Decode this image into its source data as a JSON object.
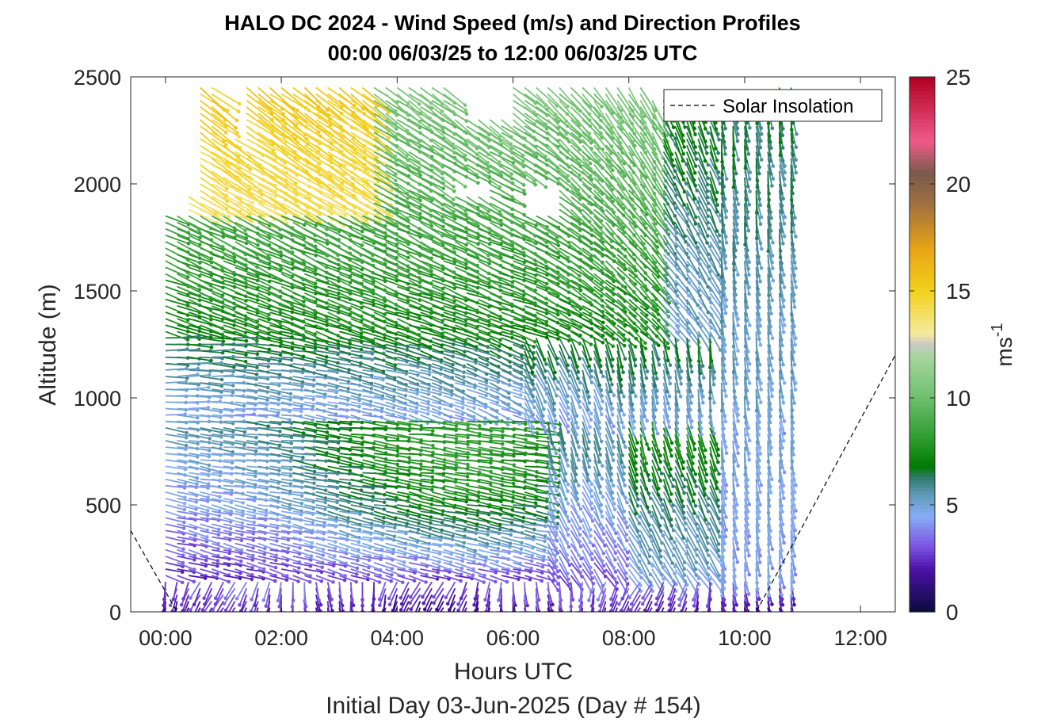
{
  "chart_data": {
    "type": "quiver",
    "title": "HALO DC 2024 - Wind Speed (m/s) and Direction Profiles",
    "subtitle": "00:00 06/03/25 to 12:00 06/03/25  UTC",
    "xlabel": "Hours UTC",
    "xlabel2": "Initial Day 03-Jun-2025 (Day # 154)",
    "ylabel": "Altitude (m)",
    "xlim_hours": [
      -0.6,
      12.6
    ],
    "ylim": [
      0,
      2500
    ],
    "xticks": [
      0,
      2,
      4,
      6,
      8,
      10,
      12
    ],
    "xtick_labels": [
      "00:00",
      "02:00",
      "04:00",
      "06:00",
      "08:00",
      "10:00",
      "12:00"
    ],
    "yticks": [
      0,
      500,
      1000,
      1500,
      2000,
      2500
    ],
    "ytick_labels": [
      "0",
      "500",
      "1000",
      "1500",
      "2000",
      "2500"
    ],
    "colorbar": {
      "label": "ms",
      "label_sup": "-1",
      "range": [
        0,
        25
      ],
      "ticks": [
        0,
        5,
        10,
        15,
        20,
        25
      ],
      "tick_labels": [
        "0",
        "5",
        "10",
        "15",
        "20",
        "25"
      ],
      "stops": [
        {
          "v": 0,
          "c": "#0b0b3a"
        },
        {
          "v": 2,
          "c": "#4b12a6"
        },
        {
          "v": 3,
          "c": "#7a4fe0"
        },
        {
          "v": 4.5,
          "c": "#85aef5"
        },
        {
          "v": 5.5,
          "c": "#5f9ab8"
        },
        {
          "v": 6.3,
          "c": "#2f7a6a"
        },
        {
          "v": 6.8,
          "c": "#007a00"
        },
        {
          "v": 8,
          "c": "#2a9a2a"
        },
        {
          "v": 10,
          "c": "#6cbf6c"
        },
        {
          "v": 12,
          "c": "#a8d6a0"
        },
        {
          "v": 12.5,
          "c": "#c8c8c8"
        },
        {
          "v": 13,
          "c": "#f5eaa0"
        },
        {
          "v": 15,
          "c": "#f3d21b"
        },
        {
          "v": 17,
          "c": "#e8a317"
        },
        {
          "v": 19,
          "c": "#a2723e"
        },
        {
          "v": 20.5,
          "c": "#7a5a4a"
        },
        {
          "v": 22,
          "c": "#f05a8a"
        },
        {
          "v": 25,
          "c": "#b00020"
        }
      ]
    },
    "legend": {
      "label": "Solar Insolation",
      "placement": "top-right"
    },
    "solar_insolation": {
      "x": [
        -0.6,
        0.2,
        10.2,
        12.6
      ],
      "y": [
        380,
        0,
        0,
        1200
      ]
    },
    "wind_profile_summary": {
      "time_range_hours": [
        0,
        10.8
      ],
      "altitude_range_m": [
        20,
        2500
      ],
      "time_step_hours": 0.2,
      "altitude_step_m": 30,
      "notes_by_layer": [
        {
          "alt_m": [
            0,
            150
          ],
          "speed_ms": [
            1,
            3.5
          ],
          "direction": "northerly"
        },
        {
          "alt_m": [
            150,
            900
          ],
          "speed_ms": [
            2,
            8
          ],
          "direction": "westerly"
        },
        {
          "alt_m": [
            900,
            1300
          ],
          "speed_ms": [
            4,
            7
          ],
          "direction": "westerly"
        },
        {
          "alt_m": [
            1300,
            2500
          ],
          "speed_ms": [
            7,
            16
          ],
          "direction": "northwesterly"
        }
      ]
    }
  }
}
